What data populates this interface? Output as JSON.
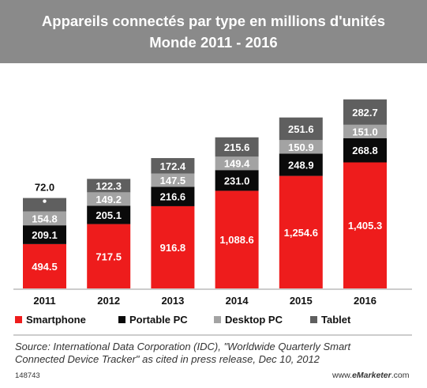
{
  "header": {
    "title_line1": "Appareils connectés par type en millions d'unités",
    "title_line2": "Monde 2011 - 2016"
  },
  "colors": {
    "header_bg": "#8a8a8a",
    "Smartphone": "#ee1c1c",
    "Portable PC": "#0a0a0a",
    "Desktop PC": "#a3a3a3",
    "Tablet": "#5f5f5f"
  },
  "chart_data": {
    "type": "bar",
    "stacked": true,
    "categories": [
      "2011",
      "2012",
      "2013",
      "2014",
      "2015",
      "2016"
    ],
    "series": [
      {
        "name": "Smartphone",
        "values": [
          494.5,
          717.5,
          916.8,
          1088.6,
          1254.6,
          1405.3
        ],
        "labels": [
          "494.5",
          "717.5",
          "916.8",
          "1,088.6",
          "1,254.6",
          "1,405.3"
        ]
      },
      {
        "name": "Portable PC",
        "values": [
          209.1,
          205.1,
          216.6,
          231.0,
          248.9,
          268.8
        ],
        "labels": [
          "209.1",
          "205.1",
          "216.6",
          "231.0",
          "248.9",
          "268.8"
        ]
      },
      {
        "name": "Desktop PC",
        "values": [
          154.8,
          149.2,
          147.5,
          149.4,
          150.9,
          151.0
        ],
        "labels": [
          "154.8",
          "149.2",
          "147.5",
          "149.4",
          "150.9",
          "151.0"
        ]
      },
      {
        "name": "Tablet",
        "values": [
          72.0,
          122.3,
          172.4,
          215.6,
          251.6,
          282.7
        ],
        "labels": [
          "72.0",
          "122.3",
          "172.4",
          "215.6",
          "251.6",
          "282.7"
        ]
      }
    ],
    "legend_position": "bottom",
    "grid": false
  },
  "source": {
    "line1": "Source: International Data Corporation (IDC), \"Worldwide Quarterly Smart",
    "line2": "Connected Device Tracker\" as cited in press release, Dec 10, 2012"
  },
  "footer": {
    "id": "148743",
    "site_prefix": "www.",
    "site_brand": "eMarketer",
    "site_suffix": ".com"
  }
}
